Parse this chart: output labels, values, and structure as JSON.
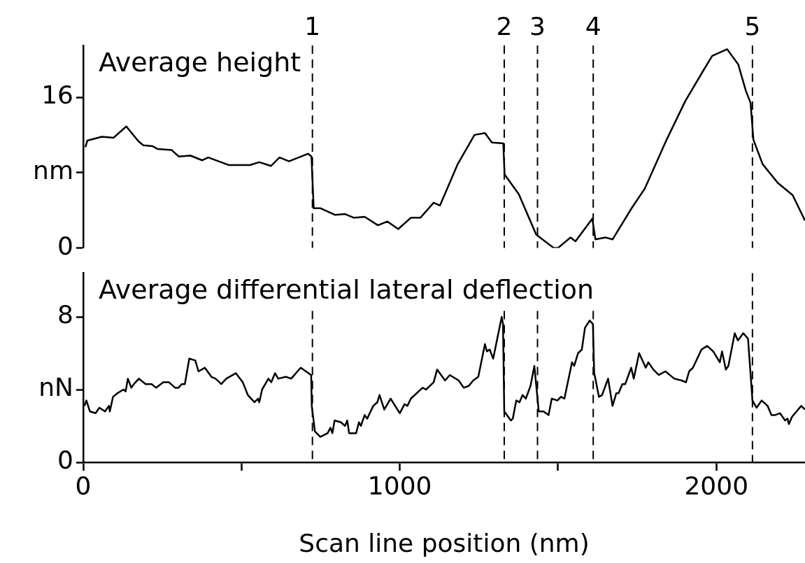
{
  "chart_data": [
    {
      "type": "line",
      "title": "Average height",
      "x": [
        7,
        13,
        59,
        96,
        136,
        175,
        190,
        219,
        235,
        279,
        302,
        339,
        376,
        395,
        459,
        527,
        556,
        593,
        620,
        650,
        710,
        721,
        728,
        750,
        796,
        826,
        855,
        889,
        931,
        961,
        995,
        1035,
        1065,
        1107,
        1127,
        1183,
        1236,
        1269,
        1291,
        1327,
        1331,
        1376,
        1431,
        1486,
        1500,
        1539,
        1555,
        1608,
        1618,
        1650,
        1672,
        1734,
        1774,
        1843,
        1902,
        1960,
        1987,
        2034,
        2069,
        2093,
        2108,
        2117,
        2146,
        2194,
        2241,
        2280
      ],
      "values": [
        10.7,
        11.4,
        11.8,
        11.7,
        12.9,
        11.3,
        10.9,
        10.8,
        10.5,
        10.4,
        9.7,
        9.8,
        9.3,
        9.6,
        8.8,
        8.8,
        9.1,
        8.7,
        9.6,
        9.2,
        10.0,
        9.7,
        4.2,
        4.2,
        3.5,
        3.6,
        3.2,
        3.3,
        2.4,
        2.8,
        2.0,
        3.2,
        3.2,
        4.8,
        4.5,
        8.9,
        12.0,
        12.2,
        11.2,
        11.1,
        7.8,
        5.7,
        1.4,
        0.0,
        0.0,
        1.1,
        0.7,
        3.1,
        0.9,
        1.1,
        0.9,
        4.3,
        6.3,
        11.5,
        15.6,
        18.9,
        20.4,
        21.1,
        19.5,
        16.7,
        15.4,
        11.5,
        8.9,
        6.9,
        5.6,
        2.9
      ],
      "color": "#000000",
      "marker": "none",
      "line_style": "solid",
      "grid": false,
      "xlim": [
        0,
        2280
      ],
      "ylim": [
        0,
        21.5
      ],
      "yticks": [
        0,
        {
          "value": 8,
          "label": "nm"
        },
        16
      ],
      "tick_labels": "y",
      "annotations": [
        "1",
        "2",
        "3",
        "4",
        "5"
      ],
      "ref_lines": [
        {
          "axis": "x",
          "value": 724,
          "line_style": "dashed"
        },
        {
          "axis": "x",
          "value": 1330,
          "line_style": "dashed"
        },
        {
          "axis": "x",
          "value": 1435,
          "line_style": "dashed"
        },
        {
          "axis": "x",
          "value": 1611,
          "line_style": "dashed"
        },
        {
          "axis": "x",
          "value": 2114,
          "line_style": "dashed"
        }
      ]
    },
    {
      "type": "line",
      "title": "Average differential lateral deflection",
      "xlabel": "Scan line position (nm)",
      "x": [
        4,
        10,
        21,
        39,
        51,
        69,
        81,
        84,
        94,
        108,
        127,
        134,
        141,
        152,
        160,
        176,
        197,
        216,
        230,
        253,
        271,
        290,
        301,
        311,
        321,
        335,
        354,
        364,
        384,
        405,
        418,
        436,
        452,
        482,
        504,
        520,
        541,
        552,
        556,
        565,
        585,
        594,
        606,
        616,
        640,
        657,
        687,
        720,
        722,
        732,
        749,
        772,
        781,
        787,
        794,
        814,
        827,
        834,
        840,
        862,
        871,
        877,
        889,
        897,
        916,
        929,
        936,
        951,
        971,
        1000,
        1015,
        1024,
        1035,
        1072,
        1083,
        1107,
        1118,
        1143,
        1158,
        1186,
        1202,
        1218,
        1232,
        1248,
        1269,
        1275,
        1284,
        1295,
        1322,
        1326,
        1330,
        1351,
        1357,
        1368,
        1378,
        1388,
        1398,
        1413,
        1425,
        1439,
        1454,
        1470,
        1480,
        1498,
        1509,
        1520,
        1544,
        1551,
        1563,
        1575,
        1585,
        1600,
        1610,
        1614,
        1619,
        1629,
        1639,
        1658,
        1672,
        1684,
        1691,
        1703,
        1712,
        1731,
        1739,
        1756,
        1777,
        1785,
        1801,
        1818,
        1839,
        1867,
        1890,
        1904,
        1914,
        1926,
        1953,
        1971,
        1990,
        2011,
        2018,
        2030,
        2038,
        2058,
        2068,
        2085,
        2100,
        2114,
        2127,
        2143,
        2162,
        2174,
        2186,
        2201,
        2217,
        2225,
        2229,
        2239,
        2268,
        2280
      ],
      "values": [
        3.1,
        3.4,
        2.8,
        2.7,
        3.0,
        2.8,
        3.1,
        2.8,
        3.6,
        3.8,
        4.0,
        3.9,
        4.6,
        4.1,
        4.3,
        4.6,
        4.3,
        4.3,
        4.1,
        4.4,
        4.4,
        4.1,
        4.1,
        4.3,
        4.3,
        5.7,
        5.6,
        5.0,
        5.2,
        4.7,
        4.6,
        4.3,
        4.6,
        4.9,
        4.4,
        3.7,
        3.3,
        3.5,
        3.3,
        4.0,
        4.6,
        4.4,
        4.9,
        4.6,
        4.7,
        4.6,
        5.2,
        4.8,
        3.1,
        1.7,
        1.4,
        1.6,
        1.9,
        1.6,
        2.3,
        2.2,
        2.0,
        2.3,
        1.6,
        1.6,
        2.2,
        2.0,
        2.6,
        2.4,
        3.1,
        3.3,
        3.7,
        2.9,
        3.5,
        2.7,
        3.2,
        3.1,
        3.5,
        4.1,
        4.0,
        4.4,
        5.1,
        4.5,
        4.8,
        4.5,
        4.1,
        4.2,
        4.5,
        4.7,
        6.5,
        6.1,
        6.2,
        5.7,
        8.0,
        7.6,
        2.8,
        2.3,
        2.4,
        3.4,
        3.3,
        3.7,
        3.5,
        4.2,
        5.3,
        2.8,
        2.8,
        2.6,
        3.5,
        3.4,
        3.6,
        3.5,
        5.5,
        5.3,
        6.0,
        6.2,
        7.4,
        7.8,
        7.6,
        4.9,
        4.5,
        3.6,
        3.7,
        4.6,
        3.1,
        3.8,
        3.8,
        4.3,
        4.3,
        5.2,
        4.6,
        6.0,
        5.2,
        5.5,
        5.1,
        4.8,
        5.0,
        4.6,
        4.5,
        4.4,
        5.0,
        5.2,
        6.2,
        6.4,
        6.1,
        5.5,
        6.1,
        5.1,
        5.3,
        7.1,
        6.7,
        7.1,
        6.8,
        3.4,
        3.0,
        3.4,
        3.1,
        2.6,
        2.6,
        2.7,
        2.3,
        2.4,
        2.1,
        2.5,
        3.1,
        2.9
      ],
      "color": "#000000",
      "marker": "none",
      "line_style": "solid",
      "grid": false,
      "xlim": [
        0,
        2280
      ],
      "xticks": [
        0,
        {
          "value": 500,
          "label": null
        },
        1000,
        {
          "value": 1500,
          "label": null
        },
        2000
      ],
      "ylim": [
        0,
        10.4
      ],
      "yticks": [
        0,
        {
          "value": 4,
          "label": "nN"
        },
        8
      ],
      "ref_lines": [
        {
          "axis": "x",
          "value": 724,
          "line_style": "dashed"
        },
        {
          "axis": "x",
          "value": 1330,
          "line_style": "dashed"
        },
        {
          "axis": "x",
          "value": 1435,
          "line_style": "dashed"
        },
        {
          "axis": "x",
          "value": 1611,
          "line_style": "dashed"
        },
        {
          "axis": "x",
          "value": 2114,
          "line_style": "dashed"
        }
      ]
    }
  ]
}
